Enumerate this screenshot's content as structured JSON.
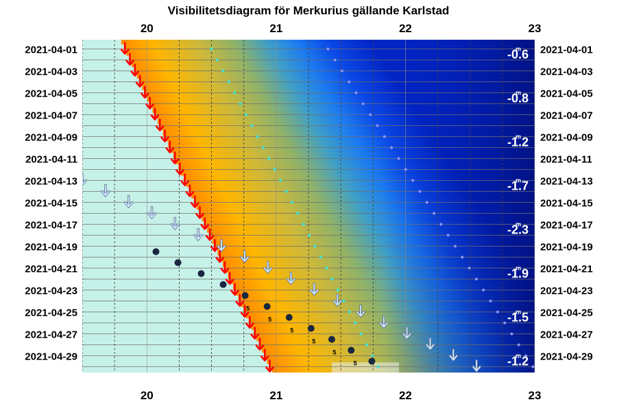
{
  "chart_data": {
    "type": "visibility-diagram",
    "title": "Visibilitetsdiagram för Merkurius gällande Karlstad",
    "x_axis": {
      "unit": "hour",
      "range": [
        19.5,
        23.0
      ],
      "ticks": [
        20,
        21,
        22,
        23
      ],
      "tick_labels": [
        "20",
        "21",
        "22",
        "23"
      ]
    },
    "y_axis": {
      "range": [
        "2021-04-01",
        "2021-04-30"
      ],
      "labels": [
        "2021-04-01",
        "2021-04-03",
        "2021-04-05",
        "2021-04-07",
        "2021-04-09",
        "2021-04-11",
        "2021-04-13",
        "2021-04-15",
        "2021-04-17",
        "2021-04-19",
        "2021-04-21",
        "2021-04-23",
        "2021-04-25",
        "2021-04-27",
        "2021-04-29"
      ]
    },
    "sunset": {
      "color": "#ff0000",
      "start_hour": 19.83,
      "end_hour": 20.96
    },
    "civil_twilight_end": {
      "color": "#40e0d0",
      "start_hour": 20.5,
      "end_hour": 21.8
    },
    "nautical_twilight_end": {
      "color": "#8c94f0",
      "start_hour": 21.4,
      "end_hour": 23.0
    },
    "mercury_set": {
      "color": "#cfe9ff",
      "first_day": 13,
      "start_hour": 19.5,
      "end_hour": 22.55
    },
    "mercury_visible": {
      "color": "#1a2740",
      "points": [
        {
          "day": 20,
          "hour": 20.07
        },
        {
          "day": 21,
          "hour": 20.24
        },
        {
          "day": 22,
          "hour": 20.42
        },
        {
          "day": 23,
          "hour": 20.59
        },
        {
          "day": 24,
          "hour": 20.76
        },
        {
          "day": 25,
          "hour": 20.93
        },
        {
          "day": 26,
          "hour": 21.1
        },
        {
          "day": 27,
          "hour": 21.27
        },
        {
          "day": 28,
          "hour": 21.43
        },
        {
          "day": 29,
          "hour": 21.58
        },
        {
          "day": 30,
          "hour": 21.74
        }
      ],
      "altitude_labels": [
        {
          "day": 25,
          "hour": 20.76,
          "text": "5"
        },
        {
          "day": 26,
          "hour": 20.93,
          "text": "5"
        },
        {
          "day": 27,
          "hour": 21.1,
          "text": "5"
        },
        {
          "day": 28,
          "hour": 21.27,
          "text": "5"
        },
        {
          "day": 29,
          "hour": 21.43,
          "text": "5"
        },
        {
          "day": 30,
          "hour": 21.59,
          "text": "5"
        }
      ]
    },
    "magnitudes": [
      {
        "day": 1.5,
        "value": "-0.6"
      },
      {
        "day": 5.5,
        "value": "-0.8"
      },
      {
        "day": 9.5,
        "value": "-1.2"
      },
      {
        "day": 13.5,
        "value": "-1.7"
      },
      {
        "day": 17.5,
        "value": "-2.3"
      },
      {
        "day": 21.5,
        "value": "-1.9"
      },
      {
        "day": 25.5,
        "value": "-1.5"
      },
      {
        "day": 29.5,
        "value": "-1.2"
      }
    ],
    "magnitude_unit": "m"
  }
}
